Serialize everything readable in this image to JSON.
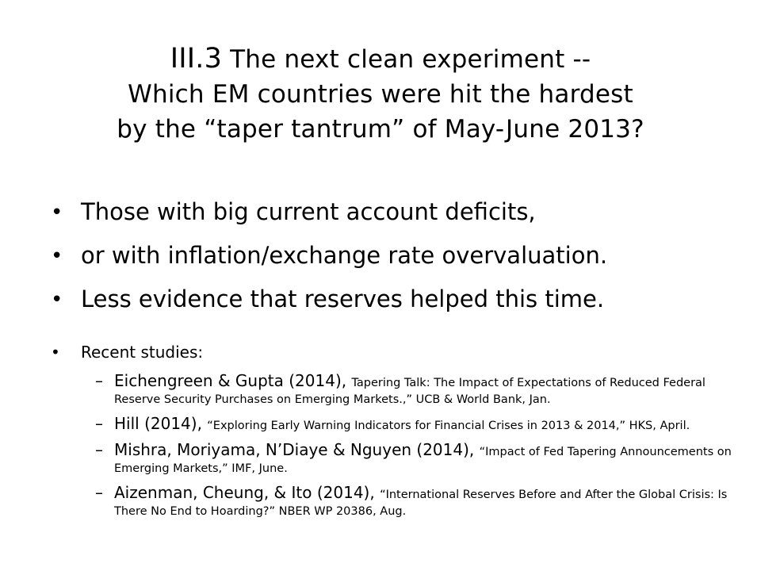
{
  "slide": {
    "title": {
      "number": "III.3",
      "line1_rest": " The next clean experiment --",
      "line2": "Which EM countries were hit the hardest",
      "line3": "by the “taper tantrum”  of  May-June 2013?"
    },
    "bullets": [
      "Those with big current account deficits,",
      "or with inflation/exchange rate overvaluation.",
      "Less evidence that reserves helped  this time."
    ],
    "recent": {
      "heading": "Recent studies:",
      "references": [
        {
          "authors": "Eichengreen & Gupta (2014), ",
          "citation": "Tapering Talk: The Impact of Expectations of Reduced Federal Reserve Security Purchases on Emerging Markets.,” UCB & World Bank, Jan."
        },
        {
          "authors": "Hill (2014), ",
          "citation": "“Exploring Early Warning Indicators for Financial Crises in 2013 & 2014,” HKS, April."
        },
        {
          "authors": "Mishra, Moriyama, N’Diaye & Nguyen (2014), ",
          "citation": "“Impact of Fed Tapering Announcements on Emerging Markets,” IMF, June."
        },
        {
          "authors": "Aizenman, Cheung, & Ito (2014), ",
          "citation": "“International Reserves Before and After the Global Crisis: Is There No End to Hoarding?” NBER WP 20386, Aug."
        }
      ]
    }
  }
}
